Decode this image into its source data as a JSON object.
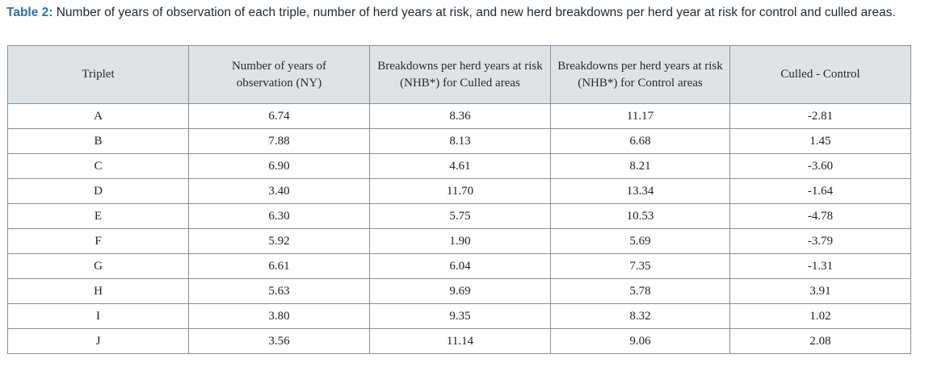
{
  "caption": {
    "label": "Table 2:",
    "text": " Number of years of observation of each triple, number of herd years at risk, and new herd breakdowns per herd year at risk for control and culled areas."
  },
  "table": {
    "headers": [
      "Triplet",
      "Number of years of observation (NY)",
      "Breakdowns per herd years at risk (NHB*) for Culled areas",
      "Breakdowns per herd years at risk (NHB*) for Control areas",
      "Culled - Control"
    ],
    "rows": [
      [
        "A",
        "6.74",
        "8.36",
        "11.17",
        "-2.81"
      ],
      [
        "B",
        "7.88",
        "8.13",
        "6.68",
        "1.45"
      ],
      [
        "C",
        "6.90",
        "4.61",
        "8.21",
        "-3.60"
      ],
      [
        "D",
        "3.40",
        "11.70",
        "13.34",
        "-1.64"
      ],
      [
        "E",
        "6.30",
        "5.75",
        "10.53",
        "-4.78"
      ],
      [
        "F",
        "5.92",
        "1.90",
        "5.69",
        "-3.79"
      ],
      [
        "G",
        "6.61",
        "6.04",
        "7.35",
        "-1.31"
      ],
      [
        "H",
        "5.63",
        "9.69",
        "5.78",
        "3.91"
      ],
      [
        "I",
        "3.80",
        "9.35",
        "8.32",
        "1.02"
      ],
      [
        "J",
        "3.56",
        "11.14",
        "9.06",
        "2.08"
      ]
    ]
  },
  "colors": {
    "caption_label": "#2f6fb0",
    "header_bg": "#dfe3e6",
    "border": "#8a8f94"
  }
}
